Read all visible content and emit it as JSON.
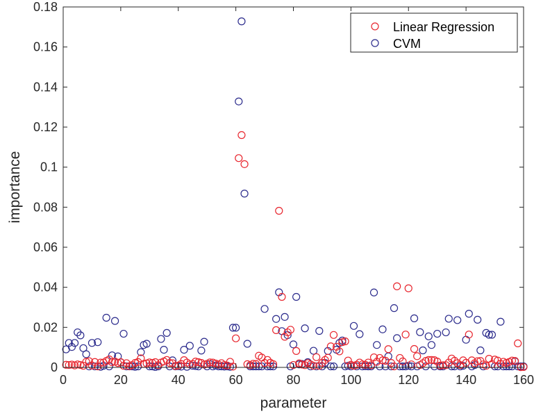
{
  "chart_data": {
    "type": "scatter",
    "title": "",
    "xlabel": "parameter",
    "ylabel": "importance",
    "xlim": [
      0,
      160
    ],
    "ylim": [
      0,
      0.18
    ],
    "xticks": [
      0,
      20,
      40,
      60,
      80,
      100,
      120,
      140,
      160
    ],
    "xtick_labels": [
      "0",
      "20",
      "40",
      "60",
      "80",
      "100",
      "120",
      "140",
      "160"
    ],
    "yticks": [
      0,
      0.02,
      0.04,
      0.06,
      0.08,
      0.1,
      0.12,
      0.14,
      0.16,
      0.18
    ],
    "ytick_labels": [
      "0",
      "0.02",
      "0.04",
      "0.06",
      "0.08",
      "0.1",
      "0.12",
      "0.14",
      "0.16",
      "0.18"
    ],
    "grid": false,
    "legend": "top-right",
    "marker": "open-circle",
    "series": [
      {
        "name": "Linear Regression",
        "color": "#e8262e",
        "x": [
          1,
          2,
          3,
          4,
          5,
          6,
          7,
          8,
          9,
          10,
          11,
          12,
          13,
          14,
          15,
          16,
          17,
          18,
          19,
          20,
          21,
          22,
          23,
          24,
          25,
          26,
          27,
          28,
          29,
          30,
          31,
          32,
          33,
          34,
          35,
          36,
          37,
          38,
          39,
          40,
          41,
          42,
          43,
          44,
          45,
          46,
          47,
          48,
          49,
          50,
          51,
          52,
          53,
          54,
          55,
          56,
          57,
          58,
          59,
          60,
          61,
          62,
          63,
          64,
          65,
          66,
          67,
          68,
          69,
          70,
          71,
          72,
          73,
          74,
          75,
          76,
          77,
          78,
          79,
          80,
          81,
          82,
          83,
          84,
          85,
          86,
          87,
          88,
          89,
          90,
          91,
          92,
          93,
          94,
          95,
          96,
          97,
          98,
          99,
          100,
          101,
          102,
          103,
          104,
          105,
          106,
          107,
          108,
          109,
          110,
          111,
          112,
          113,
          114,
          115,
          116,
          117,
          118,
          119,
          120,
          121,
          122,
          123,
          124,
          125,
          126,
          127,
          128,
          129,
          130,
          131,
          132,
          133,
          134,
          135,
          136,
          137,
          138,
          139,
          140,
          141,
          142,
          143,
          144,
          145,
          146,
          147,
          148,
          149,
          150,
          151,
          152,
          153,
          154,
          155,
          156,
          157,
          158,
          159,
          160
        ],
        "y": [
          0.0013,
          0.0012,
          0.0014,
          0.001,
          0.0015,
          0.0012,
          0.0008,
          0.0028,
          0.0031,
          0.0009,
          0.0027,
          0.0005,
          0.0024,
          0.0024,
          0.0032,
          0.004,
          0.0026,
          0.0029,
          0.0022,
          0.0026,
          0.0008,
          0.0021,
          0.0006,
          0.0012,
          0.0022,
          0.0027,
          0.0045,
          0.0017,
          0.002,
          0.0025,
          0.0022,
          0.0026,
          0.0011,
          0.0024,
          0.003,
          0.0037,
          0.0022,
          0.0021,
          0.0007,
          0.0009,
          0.0017,
          0.0036,
          0.0024,
          0.0015,
          0.0017,
          0.0029,
          0.0026,
          0.0022,
          0.0014,
          0.0018,
          0.0025,
          0.0024,
          0.0019,
          0.0014,
          0.0021,
          0.0012,
          0.0009,
          0.0028,
          0.0004,
          0.0145,
          0.1045,
          0.116,
          0.1015,
          0.0016,
          0.0011,
          0.0018,
          0.0017,
          0.0058,
          0.0049,
          0.0022,
          0.0037,
          0.0023,
          0.0016,
          0.0186,
          0.0782,
          0.0352,
          0.0153,
          0.0175,
          0.0188,
          0.0012,
          0.0082,
          0.002,
          0.0014,
          0.0011,
          0.0021,
          0.0015,
          0.0008,
          0.0051,
          0.0008,
          0.0023,
          0.0037,
          0.0048,
          0.0105,
          0.0162,
          0.0103,
          0.008,
          0.0126,
          0.013,
          0.0034,
          0.0013,
          0.0008,
          0.0013,
          0.0024,
          0.0015,
          0.0013,
          0.0024,
          0.0011,
          0.005,
          0.0028,
          0.0047,
          0.0035,
          0.0033,
          0.0091,
          0.0022,
          0.0005,
          0.0405,
          0.0047,
          0.003,
          0.0164,
          0.0395,
          0.0015,
          0.0092,
          0.0056,
          0.0012,
          0.0021,
          0.0032,
          0.0037,
          0.0037,
          0.0036,
          0.0029,
          0.0009,
          0.0011,
          0.0011,
          0.0024,
          0.0044,
          0.0033,
          0.0021,
          0.0012,
          0.0035,
          0.0023,
          0.0164,
          0.0035,
          0.0021,
          0.0031,
          0.0032,
          0.0015,
          0.0008,
          0.0043,
          0.0016,
          0.0039,
          0.0034,
          0.0018,
          0.0028,
          0.0022,
          0.0027,
          0.0034,
          0.0032,
          0.012,
          0.0001,
          0.0002
        ]
      },
      {
        "name": "CVM",
        "color": "#2b2b8c",
        "x": [
          1,
          2,
          3,
          4,
          5,
          6,
          7,
          8,
          9,
          10,
          11,
          12,
          13,
          14,
          15,
          16,
          17,
          18,
          19,
          20,
          21,
          22,
          23,
          24,
          25,
          26,
          27,
          28,
          29,
          30,
          31,
          32,
          33,
          34,
          35,
          36,
          37,
          38,
          39,
          40,
          41,
          42,
          43,
          44,
          45,
          46,
          47,
          48,
          49,
          50,
          51,
          52,
          53,
          54,
          55,
          56,
          57,
          58,
          59,
          60,
          61,
          62,
          63,
          64,
          65,
          66,
          67,
          68,
          69,
          70,
          71,
          72,
          73,
          74,
          75,
          76,
          77,
          78,
          79,
          80,
          81,
          82,
          83,
          84,
          85,
          86,
          87,
          88,
          89,
          90,
          91,
          92,
          93,
          94,
          95,
          96,
          97,
          98,
          99,
          100,
          101,
          102,
          103,
          104,
          105,
          106,
          107,
          108,
          109,
          110,
          111,
          112,
          113,
          114,
          115,
          116,
          117,
          118,
          119,
          120,
          121,
          122,
          123,
          124,
          125,
          126,
          127,
          128,
          129,
          130,
          131,
          132,
          133,
          134,
          135,
          136,
          137,
          138,
          139,
          140,
          141,
          142,
          143,
          144,
          145,
          146,
          147,
          148,
          149,
          150,
          151,
          152,
          153,
          154,
          155,
          156,
          157,
          158,
          159,
          160
        ],
        "y": [
          0.009,
          0.0122,
          0.0102,
          0.0122,
          0.0175,
          0.016,
          0.0096,
          0.0066,
          0.0005,
          0.0122,
          0.0005,
          0.0126,
          0.0003,
          0.0008,
          0.0248,
          0.0005,
          0.006,
          0.0232,
          0.0055,
          0.0025,
          0.0168,
          0.0005,
          0.0005,
          0.0005,
          0.0003,
          0.0005,
          0.0076,
          0.0112,
          0.0118,
          0.0005,
          0.0005,
          0.0002,
          0.0005,
          0.0142,
          0.0088,
          0.0172,
          0.0005,
          0.0035,
          0.0005,
          0.0006,
          0.0004,
          0.0088,
          0.0003,
          0.0108,
          0.0008,
          0.0007,
          0.0005,
          0.0084,
          0.0128,
          0.0005,
          0.0016,
          0.0005,
          0.0009,
          0.0005,
          0.0005,
          0.0004,
          0.0005,
          0.0003,
          0.0198,
          0.0198,
          0.1328,
          0.1728,
          0.0868,
          0.0118,
          0.0005,
          0.0005,
          0.0005,
          0.0005,
          0.0005,
          0.0292,
          0.0005,
          0.0005,
          0.0005,
          0.0242,
          0.0375,
          0.0181,
          0.0252,
          0.0161,
          0.0005,
          0.0115,
          0.0352,
          0.0015,
          0.0017,
          0.0195,
          0.0026,
          0.0005,
          0.0083,
          0.0005,
          0.0182,
          0.0005,
          0.0022,
          0.0082,
          0.0005,
          0.0005,
          0.0088,
          0.0122,
          0.0134,
          0.0005,
          0.0008,
          0.0005,
          0.0207,
          0.0005,
          0.0166,
          0.0005,
          0.0006,
          0.0005,
          0.0005,
          0.0374,
          0.0112,
          0.0005,
          0.019,
          0.0005,
          0.0055,
          0.0005,
          0.0296,
          0.0146,
          0.0005,
          0.0005,
          0.0005,
          0.0008,
          0.0005,
          0.0245,
          0.0005,
          0.0176,
          0.0085,
          0.0005,
          0.0155,
          0.0112,
          0.0005,
          0.0168,
          0.0005,
          0.0005,
          0.0175,
          0.0243,
          0.0005,
          0.0005,
          0.0236,
          0.0005,
          0.0008,
          0.0138,
          0.0268,
          0.0005,
          0.0012,
          0.0238,
          0.0085,
          0.0005,
          0.0172,
          0.0163,
          0.0163,
          0.0005,
          0.0005,
          0.0228,
          0.0005,
          0.0005,
          0.0005,
          0.0005,
          0.003,
          0.0005,
          0.0005,
          0.0005
        ]
      }
    ]
  }
}
